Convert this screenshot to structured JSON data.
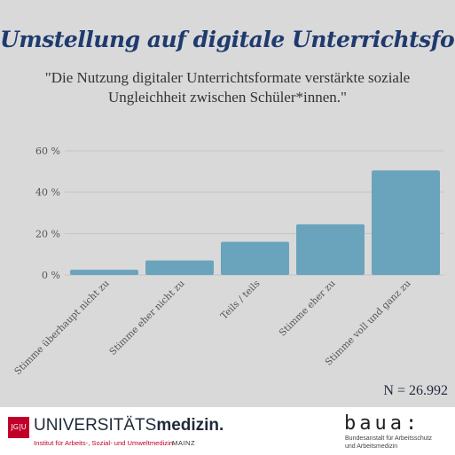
{
  "title": "Umstellung auf digitale Unterrichtsformate",
  "subtitle_line1": "\"Die Nutzung digitaler Unterrichtsformate verstärkte soziale",
  "subtitle_line2": "Ungleichheit zwischen Schüler*innen.\"",
  "sample_size": "N = 26.992",
  "colors": {
    "background": "#d9d9d9",
    "title": "#1f3a6e",
    "bar": "#6aa4bc",
    "grid": "#c4c4c4",
    "axis_text": "#555555"
  },
  "chart_data": {
    "type": "bar",
    "categories": [
      "Stimme überhaupt nicht zu",
      "Stimme eher nicht zu",
      "Teils / teils",
      "Stimme eher zu",
      "Stimme voll und ganz zu"
    ],
    "values": [
      2.5,
      7,
      16,
      24.5,
      50.5
    ],
    "ylim": [
      0,
      60
    ],
    "yticks": [
      "0 %",
      "20 %",
      "40 %",
      "60 %"
    ],
    "ytick_values": [
      0,
      20,
      40,
      60
    ],
    "grid": true,
    "legend": "none"
  },
  "footer": {
    "jgu_label": "JG|U",
    "uni_regular": "UNIVERSITÄTS",
    "uni_bold": "medizin.",
    "institute": "Institut für Arbeits-, Sozial- und Umweltmedizin",
    "city": "MAINZ",
    "baua_logo": "baua:",
    "baua_line1": "Bundesanstalt für Arbeitsschutz",
    "baua_line2": "und Arbeitsmedizin"
  }
}
